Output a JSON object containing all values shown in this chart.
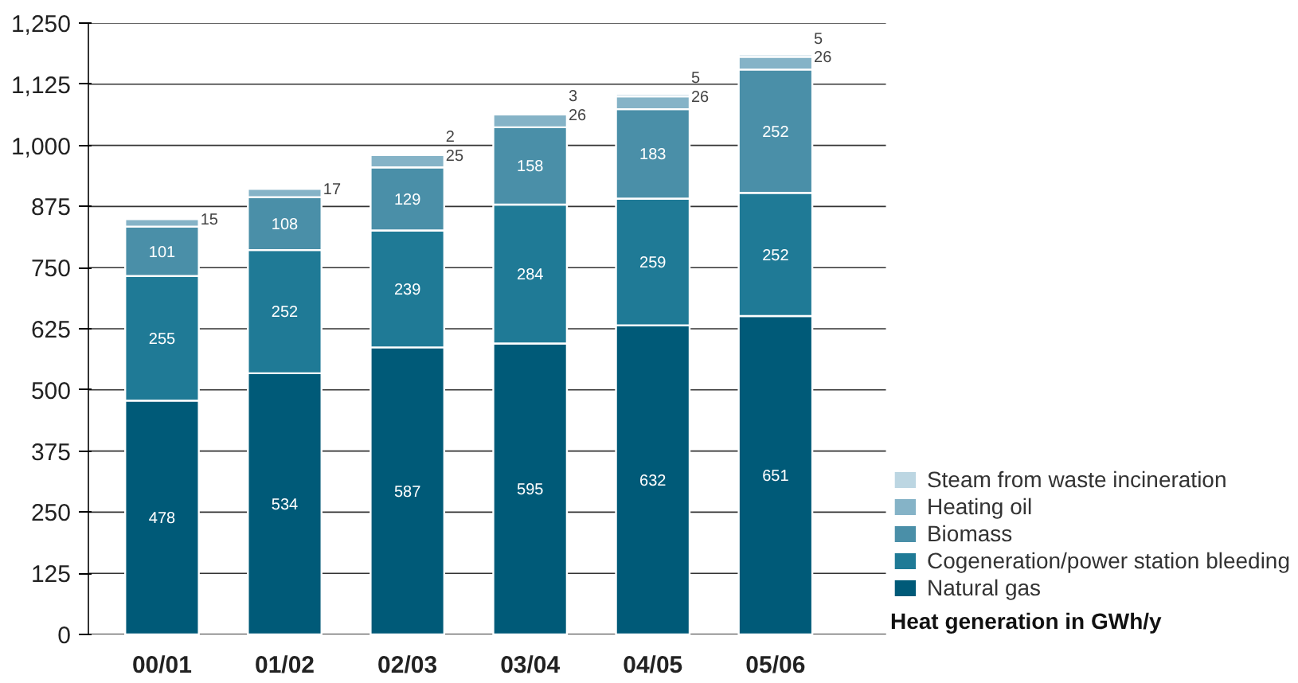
{
  "chart_data": {
    "type": "bar",
    "stacked": true,
    "xlabel": "Heat generation in GWh/y",
    "categories": [
      "00/01",
      "01/02",
      "02/03",
      "03/04",
      "04/05",
      "05/06"
    ],
    "series": [
      {
        "name": "Natural gas",
        "color": "#005a78",
        "values": [
          478,
          534,
          587,
          595,
          632,
          651
        ]
      },
      {
        "name": "Cogeneration/power station bleeding",
        "color": "#1f7a96",
        "values": [
          255,
          252,
          239,
          284,
          259,
          252
        ]
      },
      {
        "name": "Biomass",
        "color": "#4a8fa8",
        "values": [
          101,
          108,
          129,
          158,
          183,
          252
        ]
      },
      {
        "name": "Heating oil",
        "color": "#85b3c7",
        "values": [
          15,
          17,
          25,
          26,
          26,
          26
        ]
      },
      {
        "name": "Steam from waste incineration",
        "color": "#bcd6e2",
        "values": [
          null,
          null,
          2,
          3,
          5,
          5
        ]
      }
    ],
    "ylim": [
      0,
      1250
    ],
    "yticks": [
      0,
      125,
      250,
      375,
      500,
      625,
      750,
      875,
      {
        "value": 1000,
        "label": "1,000"
      },
      {
        "value": 1125,
        "label": "1,125"
      },
      {
        "value": 1250,
        "label": "1,250"
      }
    ],
    "grid": "y",
    "legend": "bottom right",
    "data_labels": true
  }
}
